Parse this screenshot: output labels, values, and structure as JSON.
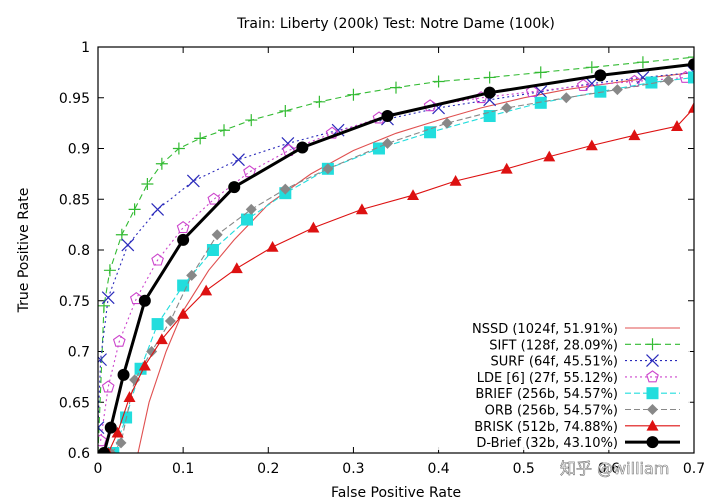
{
  "chart_data": {
    "type": "line",
    "title": "Train: Liberty (200k) Test: Notre Dame (100k)",
    "xlabel": "False Positive Rate",
    "ylabel": "True Positive Rate",
    "xlim": [
      0,
      0.7
    ],
    "ylim": [
      0.6,
      1.0
    ],
    "xticks": [
      "0",
      "0.1",
      "0.2",
      "0.3",
      "0.4",
      "0.5",
      "0.6",
      "0.7"
    ],
    "yticks": [
      "0.6",
      "0.65",
      "0.7",
      "0.75",
      "0.8",
      "0.85",
      "0.9",
      "0.95",
      "1"
    ],
    "grid": false,
    "legend_position": "bottom-right",
    "series": [
      {
        "name": "NSSD (1024f, 51.91%)",
        "color": "#e05050",
        "marker": "none",
        "dash": "solid",
        "x": [
          0.047,
          0.06,
          0.08,
          0.1,
          0.13,
          0.16,
          0.2,
          0.25,
          0.3,
          0.35,
          0.4,
          0.45,
          0.5,
          0.55,
          0.6,
          0.65,
          0.7
        ],
        "y": [
          0.6,
          0.65,
          0.7,
          0.74,
          0.78,
          0.81,
          0.845,
          0.875,
          0.898,
          0.915,
          0.928,
          0.94,
          0.95,
          0.958,
          0.964,
          0.97,
          0.975
        ]
      },
      {
        "name": "SIFT (128f, 28.09%)",
        "color": "#33bb33",
        "marker": "plus",
        "dash": "6,4",
        "x": [
          0.0,
          0.007,
          0.014,
          0.028,
          0.043,
          0.058,
          0.075,
          0.095,
          0.12,
          0.148,
          0.18,
          0.22,
          0.26,
          0.3,
          0.35,
          0.4,
          0.46,
          0.52,
          0.58,
          0.64,
          0.7
        ],
        "y": [
          0.6,
          0.745,
          0.78,
          0.815,
          0.84,
          0.865,
          0.885,
          0.9,
          0.91,
          0.918,
          0.928,
          0.937,
          0.946,
          0.953,
          0.96,
          0.966,
          0.97,
          0.975,
          0.98,
          0.985,
          0.99
        ]
      },
      {
        "name": "SURF (64f, 45.51%)",
        "color": "#2b2bbb",
        "marker": "x",
        "dash": "2,3",
        "x": [
          0.0,
          0.003,
          0.012,
          0.035,
          0.07,
          0.112,
          0.165,
          0.223,
          0.282,
          0.34,
          0.4,
          0.46,
          0.52,
          0.58,
          0.64,
          0.7
        ],
        "y": [
          0.625,
          0.692,
          0.753,
          0.805,
          0.84,
          0.868,
          0.889,
          0.905,
          0.918,
          0.929,
          0.94,
          0.948,
          0.956,
          0.964,
          0.97,
          0.975
        ]
      },
      {
        "name": "LDE [6] (27f, 55.12%)",
        "color": "#cc44cc",
        "marker": "pentagon",
        "dash": "2,3",
        "x": [
          0.003,
          0.012,
          0.025,
          0.045,
          0.07,
          0.1,
          0.136,
          0.178,
          0.224,
          0.275,
          0.33,
          0.39,
          0.45,
          0.51,
          0.57,
          0.63,
          0.69
        ],
        "y": [
          0.612,
          0.665,
          0.71,
          0.752,
          0.79,
          0.822,
          0.85,
          0.877,
          0.898,
          0.915,
          0.93,
          0.942,
          0.95,
          0.956,
          0.962,
          0.966,
          0.97
        ]
      },
      {
        "name": "BRIEF (256b, 54.57%)",
        "color": "#22dddd",
        "marker": "square",
        "dash": "6,3",
        "x": [
          0.018,
          0.033,
          0.05,
          0.07,
          0.1,
          0.135,
          0.175,
          0.22,
          0.27,
          0.33,
          0.39,
          0.46,
          0.52,
          0.59,
          0.65,
          0.7
        ],
        "y": [
          0.6,
          0.635,
          0.683,
          0.727,
          0.765,
          0.8,
          0.83,
          0.856,
          0.88,
          0.9,
          0.916,
          0.932,
          0.945,
          0.956,
          0.965,
          0.97
        ]
      },
      {
        "name": "ORB (256b, 54.57%)",
        "color": "#888888",
        "marker": "diamond",
        "dash": "6,3",
        "x": [
          0.015,
          0.027,
          0.043,
          0.063,
          0.085,
          0.11,
          0.14,
          0.18,
          0.22,
          0.27,
          0.34,
          0.41,
          0.48,
          0.55,
          0.61,
          0.67
        ],
        "y": [
          0.6,
          0.61,
          0.672,
          0.7,
          0.73,
          0.775,
          0.815,
          0.84,
          0.86,
          0.88,
          0.905,
          0.925,
          0.94,
          0.95,
          0.958,
          0.967
        ]
      },
      {
        "name": "BRISK (512b, 74.88%)",
        "color": "#dd1111",
        "marker": "triangle",
        "dash": "solid",
        "x": [
          0.012,
          0.023,
          0.037,
          0.055,
          0.075,
          0.1,
          0.127,
          0.163,
          0.205,
          0.253,
          0.31,
          0.37,
          0.42,
          0.48,
          0.53,
          0.58,
          0.63,
          0.68,
          0.7
        ],
        "y": [
          0.6,
          0.62,
          0.655,
          0.686,
          0.712,
          0.737,
          0.76,
          0.782,
          0.803,
          0.822,
          0.84,
          0.854,
          0.868,
          0.88,
          0.892,
          0.903,
          0.913,
          0.922,
          0.94
        ]
      },
      {
        "name": "D-Brief (32b, 43.10%)",
        "color": "#000000",
        "marker": "circle",
        "dash": "solid",
        "x": [
          0.007,
          0.015,
          0.03,
          0.055,
          0.1,
          0.16,
          0.24,
          0.34,
          0.46,
          0.59,
          0.7
        ],
        "y": [
          0.6,
          0.625,
          0.677,
          0.75,
          0.81,
          0.862,
          0.901,
          0.932,
          0.955,
          0.972,
          0.983
        ]
      }
    ],
    "watermark": "知乎 @william"
  }
}
